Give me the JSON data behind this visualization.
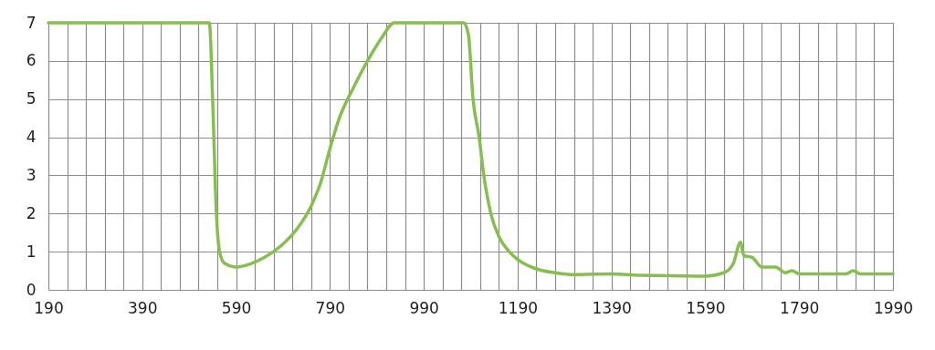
{
  "chart_data": {
    "type": "line",
    "x": [
      190,
      300,
      450,
      533,
      540,
      548,
      555,
      565,
      590,
      620,
      650,
      690,
      720,
      750,
      770,
      790,
      810,
      840,
      870,
      900,
      927,
      1000,
      1075,
      1085,
      1095,
      1108,
      1118,
      1133,
      1150,
      1172,
      1190,
      1230,
      1270,
      1310,
      1390,
      1450,
      1590,
      1630,
      1650,
      1665,
      1672,
      1690,
      1710,
      1740,
      1760,
      1775,
      1790,
      1890,
      1905,
      1920,
      1990
    ],
    "series": [
      {
        "color": "#86bf4f",
        "values": [
          7,
          7,
          7,
          7,
          5,
          2,
          1,
          0.7,
          0.6,
          0.68,
          0.85,
          1.2,
          1.6,
          2.2,
          2.8,
          3.7,
          4.5,
          5.3,
          6,
          6.6,
          7,
          7,
          7,
          6.7,
          5,
          4,
          3,
          2,
          1.4,
          1,
          0.8,
          0.55,
          0.45,
          0.4,
          0.42,
          0.38,
          0.36,
          0.45,
          0.7,
          1.25,
          0.9,
          0.85,
          0.6,
          0.6,
          0.45,
          0.5,
          0.42,
          0.42,
          0.5,
          0.42,
          0.42
        ]
      }
    ],
    "xlim": [
      190,
      1990
    ],
    "xticks": [
      190,
      {
        "value": 230,
        "label": null
      },
      {
        "value": 270,
        "label": null
      },
      {
        "value": 310,
        "label": null
      },
      {
        "value": 350,
        "label": null
      },
      390,
      {
        "value": 430,
        "label": null
      },
      {
        "value": 470,
        "label": null
      },
      {
        "value": 510,
        "label": null
      },
      {
        "value": 550,
        "label": null
      },
      590,
      {
        "value": 630,
        "label": null
      },
      {
        "value": 670,
        "label": null
      },
      {
        "value": 710,
        "label": null
      },
      {
        "value": 750,
        "label": null
      },
      790,
      {
        "value": 830,
        "label": null
      },
      {
        "value": 870,
        "label": null
      },
      {
        "value": 910,
        "label": null
      },
      {
        "value": 950,
        "label": null
      },
      990,
      {
        "value": 1030,
        "label": null
      },
      {
        "value": 1070,
        "label": null
      },
      {
        "value": 1110,
        "label": null
      },
      {
        "value": 1150,
        "label": null
      },
      1190,
      {
        "value": 1230,
        "label": null
      },
      {
        "value": 1270,
        "label": null
      },
      {
        "value": 1310,
        "label": null
      },
      {
        "value": 1350,
        "label": null
      },
      1390,
      {
        "value": 1430,
        "label": null
      },
      {
        "value": 1470,
        "label": null
      },
      {
        "value": 1510,
        "label": null
      },
      {
        "value": 1550,
        "label": null
      },
      1590,
      {
        "value": 1630,
        "label": null
      },
      {
        "value": 1670,
        "label": null
      },
      {
        "value": 1710,
        "label": null
      },
      {
        "value": 1750,
        "label": null
      },
      1790,
      {
        "value": 1830,
        "label": null
      },
      {
        "value": 1870,
        "label": null
      },
      {
        "value": 1910,
        "label": null
      },
      {
        "value": 1950,
        "label": null
      },
      1990
    ],
    "ylim": [
      0,
      7
    ],
    "yticks": [
      0,
      1,
      2,
      3,
      4,
      5,
      6,
      7
    ],
    "grid": true,
    "marker": "none",
    "line_style": "solid"
  }
}
